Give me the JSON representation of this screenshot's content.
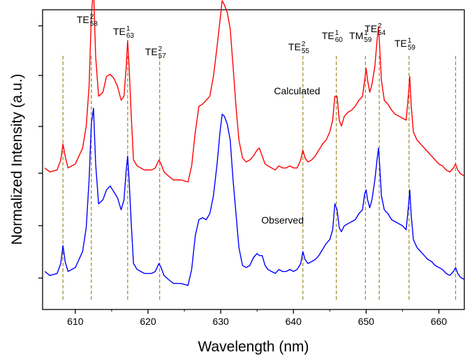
{
  "chart_data": {
    "type": "line",
    "title": "",
    "xlabel": "Wavelength (nm)",
    "ylabel": "Normalized Intensity (a.u.)",
    "xlim": [
      605.5,
      663.5
    ],
    "xticks": [
      610,
      620,
      630,
      640,
      650,
      660
    ],
    "yticks_labeled": false,
    "series": [
      {
        "name": "Calculated",
        "color": "#ff0000",
        "baseline_offset": 0.52,
        "x": [
          605.8,
          606.5,
          607.5,
          608.0,
          608.3,
          608.6,
          609.0,
          610.0,
          611.0,
          611.5,
          611.9,
          612.2,
          612.5,
          612.8,
          613.2,
          613.8,
          614.3,
          614.8,
          615.3,
          615.8,
          616.3,
          616.7,
          617.0,
          617.2,
          617.4,
          617.7,
          618.0,
          618.5,
          619.5,
          620.5,
          621.0,
          621.5,
          621.8,
          622.2,
          622.8,
          623.5,
          624.5,
          625.5,
          626.0,
          626.5,
          627.0,
          627.5,
          628.0,
          628.5,
          629.0,
          629.5,
          629.9,
          630.2,
          630.5,
          630.9,
          631.3,
          631.7,
          632.1,
          632.5,
          633.0,
          633.5,
          634.0,
          634.5,
          635.0,
          635.3,
          635.7,
          636.1,
          636.5,
          637.0,
          637.5,
          638.0,
          638.5,
          639.0,
          639.5,
          640.0,
          640.5,
          641.0,
          641.3,
          641.6,
          642.0,
          642.5,
          643.0,
          643.5,
          644.0,
          644.5,
          645.0,
          645.4,
          645.7,
          646.0,
          646.3,
          646.6,
          647.0,
          647.5,
          648.0,
          648.5,
          649.0,
          649.5,
          649.8,
          650.0,
          650.2,
          650.5,
          650.8,
          651.2,
          651.5,
          651.7,
          651.9,
          652.1,
          652.5,
          653.0,
          653.5,
          654.0,
          654.5,
          655.0,
          655.5,
          655.8,
          656.0,
          656.2,
          656.5,
          657.0,
          657.5,
          658.0,
          658.5,
          659.0,
          659.5,
          660.0,
          660.5,
          661.0,
          661.5,
          662.0,
          662.3,
          662.6,
          663.0,
          663.5
        ],
        "y": [
          0.04,
          0.02,
          0.03,
          0.08,
          0.16,
          0.1,
          0.04,
          0.06,
          0.14,
          0.25,
          0.45,
          0.8,
          0.95,
          0.6,
          0.4,
          0.42,
          0.5,
          0.51,
          0.49,
          0.45,
          0.38,
          0.4,
          0.55,
          0.68,
          0.55,
          0.3,
          0.08,
          0.05,
          0.03,
          0.03,
          0.04,
          0.08,
          0.06,
          0.02,
          0.0,
          -0.02,
          -0.02,
          -0.03,
          0.05,
          0.22,
          0.35,
          0.36,
          0.38,
          0.4,
          0.5,
          0.65,
          0.78,
          0.88,
          0.86,
          0.82,
          0.74,
          0.55,
          0.35,
          0.18,
          0.09,
          0.07,
          0.08,
          0.1,
          0.13,
          0.14,
          0.1,
          0.06,
          0.05,
          0.04,
          0.03,
          0.05,
          0.04,
          0.04,
          0.05,
          0.04,
          0.04,
          0.08,
          0.13,
          0.09,
          0.07,
          0.08,
          0.1,
          0.13,
          0.16,
          0.18,
          0.22,
          0.28,
          0.4,
          0.4,
          0.28,
          0.25,
          0.3,
          0.32,
          0.33,
          0.35,
          0.38,
          0.4,
          0.48,
          0.54,
          0.48,
          0.42,
          0.46,
          0.55,
          0.68,
          0.75,
          0.62,
          0.48,
          0.38,
          0.36,
          0.33,
          0.31,
          0.3,
          0.29,
          0.28,
          0.4,
          0.5,
          0.35,
          0.22,
          0.18,
          0.16,
          0.14,
          0.12,
          0.1,
          0.08,
          0.06,
          0.05,
          0.03,
          0.02,
          0.04,
          0.06,
          0.03,
          0.01,
          0.0
        ]
      },
      {
        "name": "Observed",
        "color": "#0000ff",
        "baseline_offset": 0.0,
        "x": [
          605.8,
          606.5,
          607.5,
          608.0,
          608.3,
          608.6,
          609.0,
          610.0,
          611.0,
          611.5,
          611.9,
          612.2,
          612.5,
          612.8,
          613.2,
          613.8,
          614.3,
          614.8,
          615.3,
          615.8,
          616.3,
          616.7,
          617.0,
          617.2,
          617.4,
          617.7,
          618.0,
          618.5,
          619.5,
          620.5,
          621.0,
          621.5,
          621.8,
          622.2,
          622.8,
          623.5,
          624.5,
          625.5,
          626.0,
          626.5,
          627.0,
          627.5,
          628.0,
          628.5,
          629.0,
          629.5,
          629.9,
          630.2,
          630.5,
          630.9,
          631.3,
          631.7,
          632.1,
          632.5,
          633.0,
          633.5,
          634.0,
          634.5,
          635.0,
          635.3,
          635.7,
          636.1,
          636.5,
          637.0,
          637.5,
          638.0,
          638.5,
          639.0,
          639.5,
          640.0,
          640.5,
          641.0,
          641.3,
          641.6,
          642.0,
          642.5,
          643.0,
          643.5,
          644.0,
          644.5,
          645.0,
          645.4,
          645.7,
          646.0,
          646.3,
          646.6,
          647.0,
          647.5,
          648.0,
          648.5,
          649.0,
          649.5,
          649.8,
          650.0,
          650.2,
          650.5,
          650.8,
          651.2,
          651.5,
          651.7,
          651.9,
          652.1,
          652.5,
          653.0,
          653.5,
          654.0,
          654.5,
          655.0,
          655.5,
          655.8,
          656.0,
          656.2,
          656.5,
          657.0,
          657.5,
          658.0,
          658.5,
          659.0,
          659.5,
          660.0,
          660.5,
          661.0,
          661.5,
          662.0,
          662.3,
          662.6,
          663.0,
          663.5
        ],
        "y": [
          0.04,
          0.02,
          0.03,
          0.08,
          0.17,
          0.09,
          0.04,
          0.06,
          0.14,
          0.26,
          0.5,
          0.78,
          0.86,
          0.58,
          0.38,
          0.4,
          0.45,
          0.47,
          0.44,
          0.41,
          0.35,
          0.4,
          0.55,
          0.62,
          0.5,
          0.28,
          0.08,
          0.05,
          0.03,
          0.03,
          0.04,
          0.08,
          0.06,
          0.02,
          0.0,
          -0.02,
          -0.02,
          -0.03,
          0.05,
          0.22,
          0.3,
          0.31,
          0.3,
          0.33,
          0.42,
          0.58,
          0.74,
          0.83,
          0.82,
          0.78,
          0.7,
          0.5,
          0.33,
          0.16,
          0.07,
          0.06,
          0.07,
          0.11,
          0.13,
          0.12,
          0.12,
          0.07,
          0.05,
          0.04,
          0.03,
          0.05,
          0.04,
          0.04,
          0.05,
          0.04,
          0.05,
          0.08,
          0.14,
          0.1,
          0.08,
          0.09,
          0.1,
          0.12,
          0.15,
          0.18,
          0.2,
          0.25,
          0.38,
          0.35,
          0.26,
          0.24,
          0.27,
          0.28,
          0.29,
          0.3,
          0.33,
          0.35,
          0.43,
          0.45,
          0.4,
          0.36,
          0.4,
          0.5,
          0.6,
          0.66,
          0.55,
          0.42,
          0.35,
          0.33,
          0.3,
          0.29,
          0.28,
          0.27,
          0.25,
          0.36,
          0.45,
          0.32,
          0.2,
          0.16,
          0.14,
          0.12,
          0.1,
          0.09,
          0.07,
          0.06,
          0.05,
          0.03,
          0.02,
          0.04,
          0.06,
          0.03,
          0.01,
          0.0
        ]
      }
    ],
    "series_labels": [
      {
        "text": "Calculated",
        "x": 640.5,
        "y": 0.93
      },
      {
        "text": "Observed",
        "x": 638.5,
        "y": 0.28
      }
    ],
    "mode_markers": [
      {
        "x": 608.3,
        "label": null
      },
      {
        "x": 612.2,
        "label": {
          "base": "TE",
          "sup": "2",
          "sub": "58"
        }
      },
      {
        "x": 617.2,
        "label": {
          "base": "TE",
          "sup": "1",
          "sub": "63"
        }
      },
      {
        "x": 621.6,
        "label": {
          "base": "TE",
          "sup": "2",
          "sub": "57"
        }
      },
      {
        "x": 641.3,
        "label": {
          "base": "TE",
          "sup": "2",
          "sub": "55"
        }
      },
      {
        "x": 645.9,
        "label": {
          "base": "TE",
          "sup": "1",
          "sub": "60"
        }
      },
      {
        "x": 649.9,
        "label": {
          "base": "TM",
          "sup": "1",
          "sub": "59"
        }
      },
      {
        "x": 651.8,
        "label": {
          "base": "TE",
          "sup": "2",
          "sub": "54"
        }
      },
      {
        "x": 655.9,
        "label": {
          "base": "TE",
          "sup": "1",
          "sub": "59"
        }
      },
      {
        "x": 662.3,
        "label": null
      }
    ],
    "marker_color": "#9a8a2a",
    "grid": false
  }
}
